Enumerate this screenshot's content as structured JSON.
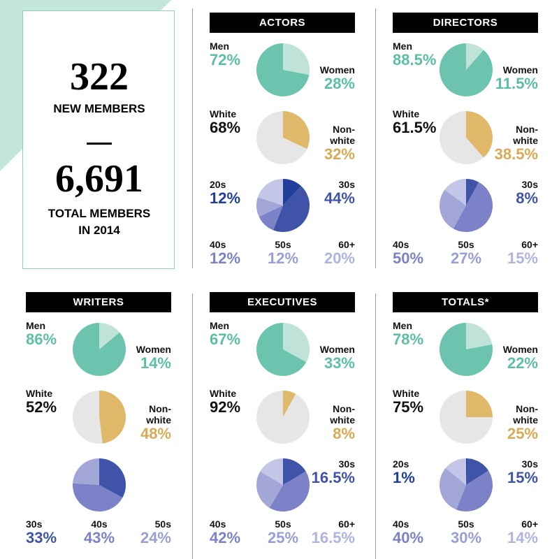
{
  "summary": {
    "new_members": "322",
    "new_members_label": "NEW MEMBERS",
    "total_members": "6,691",
    "total_members_label": "TOTAL MEMBERS\nIN 2014"
  },
  "chart_data": [
    {
      "type": "pie",
      "title": "ACTORS",
      "pies": [
        {
          "categories": [
            "Men",
            "Women"
          ],
          "values": [
            72,
            28
          ],
          "value_labels": [
            "72%",
            "28%"
          ],
          "colors": [
            "#6cc4ae",
            "#bfe3d8"
          ],
          "label_colors": [
            "#5bbfa5",
            "#5bbfa5"
          ]
        },
        {
          "categories": [
            "White",
            "Non-\nwhite"
          ],
          "values": [
            68,
            32
          ],
          "value_labels": [
            "68%",
            "32%"
          ],
          "colors": [
            "#e6e6e6",
            "#e0b86a"
          ],
          "label_colors": [
            "#111111",
            "#d9a955"
          ]
        },
        {
          "categories": [
            "20s",
            "30s",
            "40s",
            "50s",
            "60+"
          ],
          "values": [
            12,
            44,
            12,
            12,
            20
          ],
          "value_labels": [
            "12%",
            "44%",
            "12%",
            "12%",
            "20%"
          ],
          "colors": [
            "#1f3f9a",
            "#3f54a8",
            "#7b82c8",
            "#a3a7d8",
            "#c4c6e8"
          ],
          "label_colors": [
            "#1f3f9a",
            "#3f54a8",
            "#7b82c8",
            "#9a9ed4",
            "#b0b3e0"
          ]
        }
      ]
    },
    {
      "type": "pie",
      "title": "DIRECTORS",
      "pies": [
        {
          "categories": [
            "Men",
            "Women"
          ],
          "values": [
            88.5,
            11.5
          ],
          "value_labels": [
            "88.5%",
            "11.5%"
          ],
          "colors": [
            "#6cc4ae",
            "#bfe3d8"
          ],
          "label_colors": [
            "#5bbfa5",
            "#5bbfa5"
          ]
        },
        {
          "categories": [
            "White",
            "Non-\nwhite"
          ],
          "values": [
            61.5,
            38.5
          ],
          "value_labels": [
            "61.5%",
            "38.5%"
          ],
          "colors": [
            "#e6e6e6",
            "#e0b86a"
          ],
          "label_colors": [
            "#111111",
            "#d9a955"
          ]
        },
        {
          "categories": [
            "30s",
            "40s",
            "50s",
            "60+"
          ],
          "values": [
            8,
            50,
            27,
            15
          ],
          "value_labels": [
            "8%",
            "50%",
            "27%",
            "15%"
          ],
          "colors": [
            "#3f54a8",
            "#7b82c8",
            "#a3a7d8",
            "#c4c6e8"
          ],
          "label_colors": [
            "#3f54a8",
            "#7b82c8",
            "#9a9ed4",
            "#b0b3e0"
          ]
        }
      ]
    },
    {
      "type": "pie",
      "title": "WRITERS",
      "pies": [
        {
          "categories": [
            "Men",
            "Women"
          ],
          "values": [
            86,
            14
          ],
          "value_labels": [
            "86%",
            "14%"
          ],
          "colors": [
            "#6cc4ae",
            "#bfe3d8"
          ],
          "label_colors": [
            "#5bbfa5",
            "#5bbfa5"
          ]
        },
        {
          "categories": [
            "White",
            "Non-\nwhite"
          ],
          "values": [
            52,
            48
          ],
          "value_labels": [
            "52%",
            "48%"
          ],
          "colors": [
            "#e6e6e6",
            "#e0b86a"
          ],
          "label_colors": [
            "#111111",
            "#d9a955"
          ]
        },
        {
          "categories": [
            "30s",
            "40s",
            "50s"
          ],
          "values": [
            33,
            43,
            24
          ],
          "value_labels": [
            "33%",
            "43%",
            "24%"
          ],
          "colors": [
            "#3f54a8",
            "#7b82c8",
            "#a3a7d8"
          ],
          "label_colors": [
            "#3f54a8",
            "#7b82c8",
            "#9a9ed4"
          ]
        }
      ]
    },
    {
      "type": "pie",
      "title": "EXECUTIVES",
      "pies": [
        {
          "categories": [
            "Men",
            "Women"
          ],
          "values": [
            67,
            33
          ],
          "value_labels": [
            "67%",
            "33%"
          ],
          "colors": [
            "#6cc4ae",
            "#bfe3d8"
          ],
          "label_colors": [
            "#5bbfa5",
            "#5bbfa5"
          ]
        },
        {
          "categories": [
            "White",
            "Non-\nwhite"
          ],
          "values": [
            92,
            8
          ],
          "value_labels": [
            "92%",
            "8%"
          ],
          "colors": [
            "#e6e6e6",
            "#e0b86a"
          ],
          "label_colors": [
            "#111111",
            "#d9a955"
          ]
        },
        {
          "categories": [
            "30s",
            "40s",
            "50s",
            "60+"
          ],
          "values": [
            16.5,
            42,
            25,
            16.5
          ],
          "value_labels": [
            "16.5%",
            "42%",
            "25%",
            "16.5%"
          ],
          "colors": [
            "#3f54a8",
            "#7b82c8",
            "#a3a7d8",
            "#c4c6e8"
          ],
          "label_colors": [
            "#3f54a8",
            "#7b82c8",
            "#9a9ed4",
            "#b0b3e0"
          ]
        }
      ]
    },
    {
      "type": "pie",
      "title": "TOTALS*",
      "pies": [
        {
          "categories": [
            "Men",
            "Women"
          ],
          "values": [
            78,
            22
          ],
          "value_labels": [
            "78%",
            "22%"
          ],
          "colors": [
            "#6cc4ae",
            "#bfe3d8"
          ],
          "label_colors": [
            "#5bbfa5",
            "#5bbfa5"
          ]
        },
        {
          "categories": [
            "White",
            "Non-\nwhite"
          ],
          "values": [
            75,
            25
          ],
          "value_labels": [
            "75%",
            "25%"
          ],
          "colors": [
            "#e6e6e6",
            "#e0b86a"
          ],
          "label_colors": [
            "#111111",
            "#d9a955"
          ]
        },
        {
          "categories": [
            "20s",
            "30s",
            "40s",
            "50s",
            "60+"
          ],
          "values": [
            1,
            15,
            40,
            30,
            14
          ],
          "value_labels": [
            "1%",
            "15%",
            "40%",
            "30%",
            "14%"
          ],
          "colors": [
            "#1f3f9a",
            "#3f54a8",
            "#7b82c8",
            "#a3a7d8",
            "#c4c6e8"
          ],
          "label_colors": [
            "#1f3f9a",
            "#3f54a8",
            "#7b82c8",
            "#9a9ed4",
            "#b0b3e0"
          ]
        }
      ]
    }
  ]
}
